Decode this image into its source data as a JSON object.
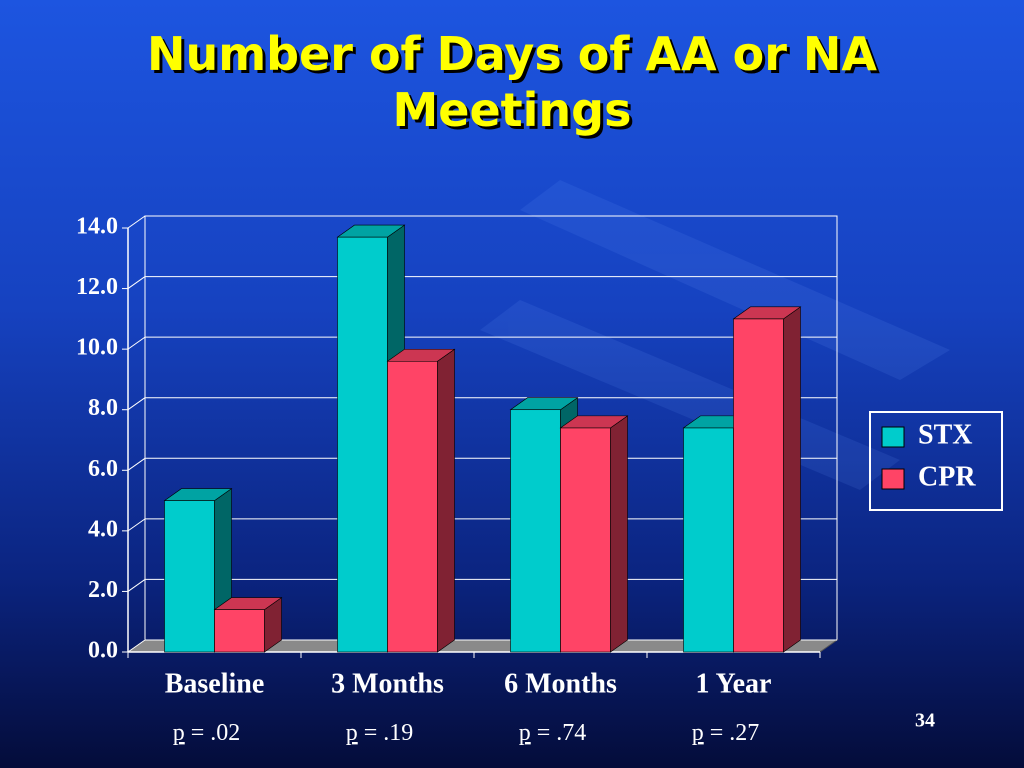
{
  "chart_data": {
    "type": "bar",
    "title": "Number of Days of AA or NA Meetings",
    "categories": [
      "Baseline",
      "3 Months",
      "6 Months",
      "1 Year"
    ],
    "series": [
      {
        "name": "STX",
        "color": "#00cccc",
        "values": [
          5.0,
          13.7,
          8.0,
          7.4
        ]
      },
      {
        "name": "CPR",
        "color": "#ff4466",
        "values": [
          1.4,
          9.6,
          7.4,
          11.0
        ]
      }
    ],
    "ylim": [
      0,
      14
    ],
    "yticks": [
      {
        "value": 0,
        "label": "0.0"
      },
      {
        "value": 2,
        "label": "2.0"
      },
      {
        "value": 4,
        "label": "4.0"
      },
      {
        "value": 6,
        "label": "6.0"
      },
      {
        "value": 8,
        "label": "8.0"
      },
      {
        "value": 10,
        "label": "10.0"
      },
      {
        "value": 12,
        "label": "12.0"
      },
      {
        "value": 14,
        "label": "14.0"
      }
    ],
    "grid": true,
    "legend": "right",
    "annotations": [
      {
        "symbol": "p",
        "text": "= .02"
      },
      {
        "symbol": "p",
        "text": "= .19"
      },
      {
        "symbol": "p",
        "text": "= .74"
      },
      {
        "symbol": "p",
        "text": "= .27"
      }
    ],
    "slide_number": "34"
  }
}
